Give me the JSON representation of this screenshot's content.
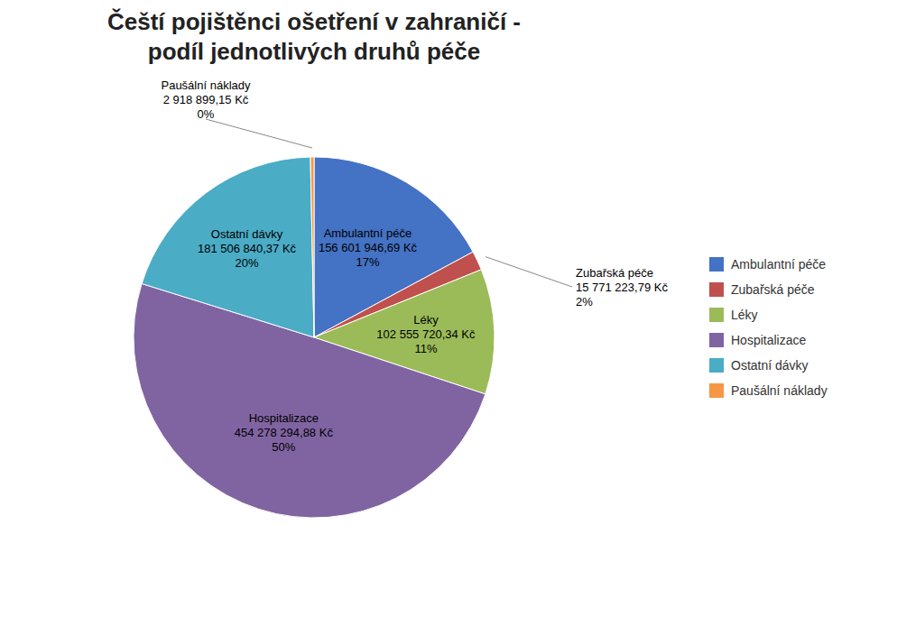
{
  "chart_data": {
    "type": "pie",
    "title": "Čeští pojištěnci ošetření v zahraničí -\npodíl jednotlivých druhů péče",
    "categories": [
      "Ambulantní péče",
      "Zubařská péče",
      "Léky",
      "Hospitalizace",
      "Ostatní dávky",
      "Paušální náklady"
    ],
    "values": [
      156601946.69,
      15771223.79,
      102555720.34,
      454278294.88,
      181506840.37,
      2918899.15
    ],
    "value_labels": [
      "156 601 946,69 Kč",
      "15 771 223,79 Kč",
      "102 555 720,34 Kč",
      "454 278 294,88 Kč",
      "181 506 840,37 Kč",
      "2 918 899,15 Kč"
    ],
    "shares": [
      17,
      2,
      11,
      50,
      20,
      0
    ],
    "share_labels": [
      "17%",
      "2%",
      "11%",
      "50%",
      "20%",
      "0%"
    ],
    "colors": [
      "#4472C4",
      "#C0504D",
      "#9BBB59",
      "#8064A2",
      "#4BACC6",
      "#F79646"
    ],
    "data_labels": true,
    "legend": "right"
  }
}
